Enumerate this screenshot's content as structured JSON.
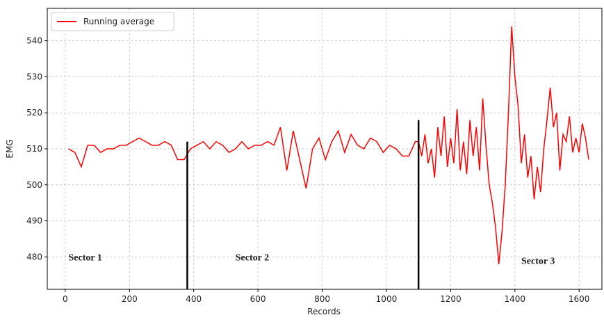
{
  "chart_data": {
    "type": "line",
    "xlabel": "Records",
    "ylabel": "EMG",
    "x": [
      10,
      30,
      50,
      70,
      90,
      110,
      130,
      150,
      170,
      190,
      210,
      230,
      250,
      270,
      290,
      310,
      330,
      350,
      370,
      390,
      410,
      430,
      450,
      470,
      490,
      510,
      530,
      550,
      570,
      590,
      610,
      630,
      650,
      670,
      690,
      710,
      730,
      750,
      770,
      790,
      810,
      830,
      850,
      870,
      890,
      910,
      930,
      950,
      970,
      990,
      1010,
      1030,
      1050,
      1070,
      1090,
      1100,
      1110,
      1120,
      1130,
      1140,
      1150,
      1160,
      1170,
      1180,
      1190,
      1200,
      1210,
      1220,
      1230,
      1240,
      1250,
      1260,
      1270,
      1280,
      1290,
      1300,
      1310,
      1320,
      1330,
      1340,
      1350,
      1360,
      1370,
      1380,
      1390,
      1400,
      1410,
      1420,
      1430,
      1440,
      1450,
      1460,
      1470,
      1480,
      1490,
      1500,
      1510,
      1520,
      1530,
      1540,
      1550,
      1560,
      1570,
      1580,
      1590,
      1600,
      1610,
      1620,
      1630
    ],
    "series": [
      {
        "name": "Running average",
        "color": "#ff0000",
        "values": [
          510,
          509,
          505,
          511,
          511,
          509,
          510,
          510,
          511,
          511,
          512,
          513,
          512,
          511,
          511,
          512,
          511,
          507,
          507,
          510,
          511,
          512,
          510,
          512,
          511,
          509,
          510,
          512,
          510,
          511,
          511,
          512,
          511,
          516,
          504,
          515,
          507,
          499,
          510,
          513,
          507,
          512,
          515,
          509,
          514,
          511,
          510,
          513,
          512,
          509,
          511,
          510,
          508,
          508,
          512,
          512,
          508,
          514,
          506,
          510,
          502,
          516,
          508,
          519,
          505,
          513,
          506,
          521,
          504,
          512,
          503,
          518,
          508,
          516,
          504,
          524,
          511,
          500,
          495,
          488,
          478,
          487,
          500,
          520,
          544,
          530,
          522,
          506,
          514,
          502,
          508,
          496,
          505,
          498,
          510,
          518,
          527,
          516,
          520,
          504,
          514,
          512,
          519,
          509,
          513,
          509,
          517,
          513,
          507
        ]
      }
    ],
    "vlines": [
      {
        "x": 380,
        "y": 512
      },
      {
        "x": 1100,
        "y": 518
      }
    ],
    "annotations": [
      "Sector 1",
      "Sector 2",
      "Sector 3"
    ],
    "xlim": [
      -56,
      1671
    ],
    "ylim": [
      471,
      549
    ],
    "xticks": [
      0,
      200,
      400,
      600,
      800,
      1000,
      1200,
      1400,
      1600
    ],
    "yticks": [
      480,
      490,
      500,
      510,
      520,
      530,
      540
    ],
    "grid": true,
    "legend": "upper left"
  }
}
